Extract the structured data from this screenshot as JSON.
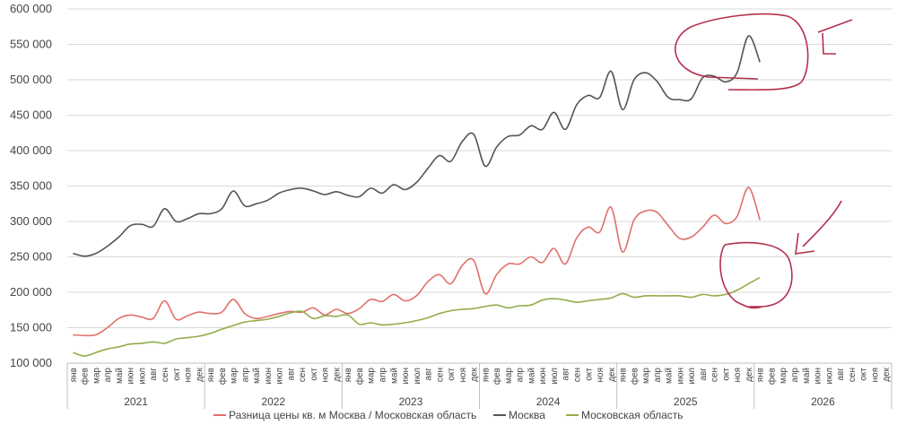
{
  "chart_data": {
    "type": "line",
    "title": "",
    "ylim": [
      100000,
      600000
    ],
    "ytick_labels": [
      "100 000",
      "150 000",
      "200 000",
      "250 000",
      "300 000",
      "350 000",
      "400 000",
      "450 000",
      "500 000",
      "550 000",
      "600 000"
    ],
    "ytick_values": [
      100000,
      150000,
      200000,
      250000,
      300000,
      350000,
      400000,
      450000,
      500000,
      550000,
      600000
    ],
    "months": [
      "янв",
      "фев",
      "мар",
      "апр",
      "май",
      "июн",
      "июл",
      "авг",
      "сен",
      "окт",
      "ноя",
      "дек"
    ],
    "years": [
      "2021",
      "2022",
      "2023",
      "2024",
      "2025",
      "2026"
    ],
    "grid": true,
    "legend_position": "bottom",
    "series": [
      {
        "name": "Разница цены кв. м Москва / Московская область",
        "color": "#e0706b",
        "values": [
          140000,
          139000,
          140000,
          150000,
          163000,
          168000,
          165000,
          163000,
          188000,
          162000,
          167000,
          172000,
          170000,
          172000,
          190000,
          170000,
          163000,
          166000,
          170000,
          173000,
          172000,
          178000,
          168000,
          176000,
          170000,
          177000,
          190000,
          187000,
          197000,
          188000,
          195000,
          215000,
          225000,
          212000,
          238000,
          245000,
          198000,
          225000,
          240000,
          240000,
          250000,
          242000,
          262000,
          240000,
          277000,
          292000,
          285000,
          320000,
          257000,
          302000,
          315000,
          313000,
          294000,
          276000,
          278000,
          292000,
          309000,
          297000,
          307000,
          348000,
          302000
        ]
      },
      {
        "name": "Москва",
        "color": "#555555",
        "values": [
          255000,
          251000,
          255000,
          265000,
          278000,
          294000,
          296000,
          293000,
          318000,
          300000,
          304000,
          311000,
          311000,
          318000,
          343000,
          322000,
          325000,
          330000,
          340000,
          345000,
          347000,
          343000,
          338000,
          342000,
          337000,
          335000,
          347000,
          340000,
          352000,
          345000,
          355000,
          375000,
          393000,
          385000,
          413000,
          423000,
          378000,
          405000,
          420000,
          422000,
          435000,
          430000,
          454000,
          430000,
          465000,
          478000,
          475000,
          512000,
          458000,
          500000,
          510000,
          498000,
          475000,
          472000,
          473000,
          503000,
          505000,
          497000,
          510000,
          562000,
          525000
        ]
      },
      {
        "name": "Московская область",
        "color": "#92ad4b",
        "values": [
          115000,
          110000,
          115000,
          120000,
          123000,
          127000,
          128000,
          130000,
          128000,
          134000,
          136000,
          138000,
          142000,
          148000,
          153000,
          158000,
          160000,
          162000,
          166000,
          171000,
          173000,
          163000,
          167000,
          166000,
          168000,
          155000,
          157000,
          154000,
          155000,
          157000,
          160000,
          164000,
          170000,
          174000,
          176000,
          177000,
          180000,
          182000,
          178000,
          181000,
          182000,
          189000,
          191000,
          189000,
          186000,
          188000,
          190000,
          192000,
          198000,
          193000,
          195000,
          195000,
          195000,
          195000,
          193000,
          197000,
          195000,
          197000,
          203000,
          212000,
          221000
        ]
      }
    ]
  }
}
